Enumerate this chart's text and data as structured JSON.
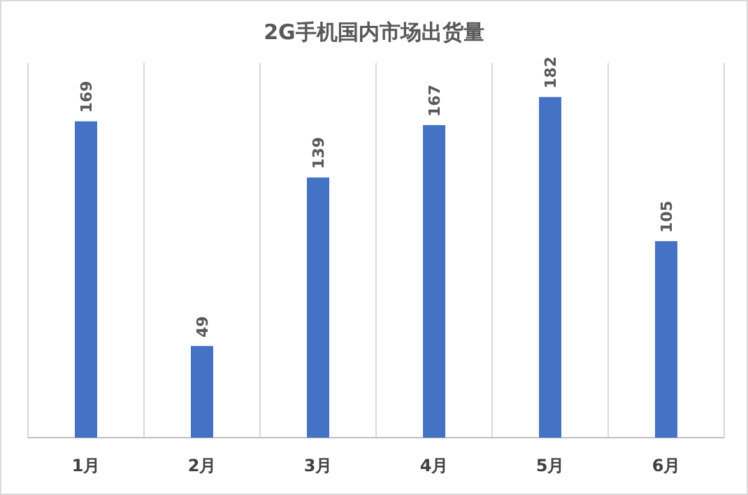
{
  "chart_data": {
    "type": "bar",
    "title": "2G手机国内市场出货量",
    "categories": [
      "1月",
      "2月",
      "3月",
      "4月",
      "5月",
      "6月"
    ],
    "values": [
      169,
      49,
      139,
      167,
      182,
      105
    ],
    "color": "#4472c4",
    "data_labels": true,
    "grid": "x"
  }
}
